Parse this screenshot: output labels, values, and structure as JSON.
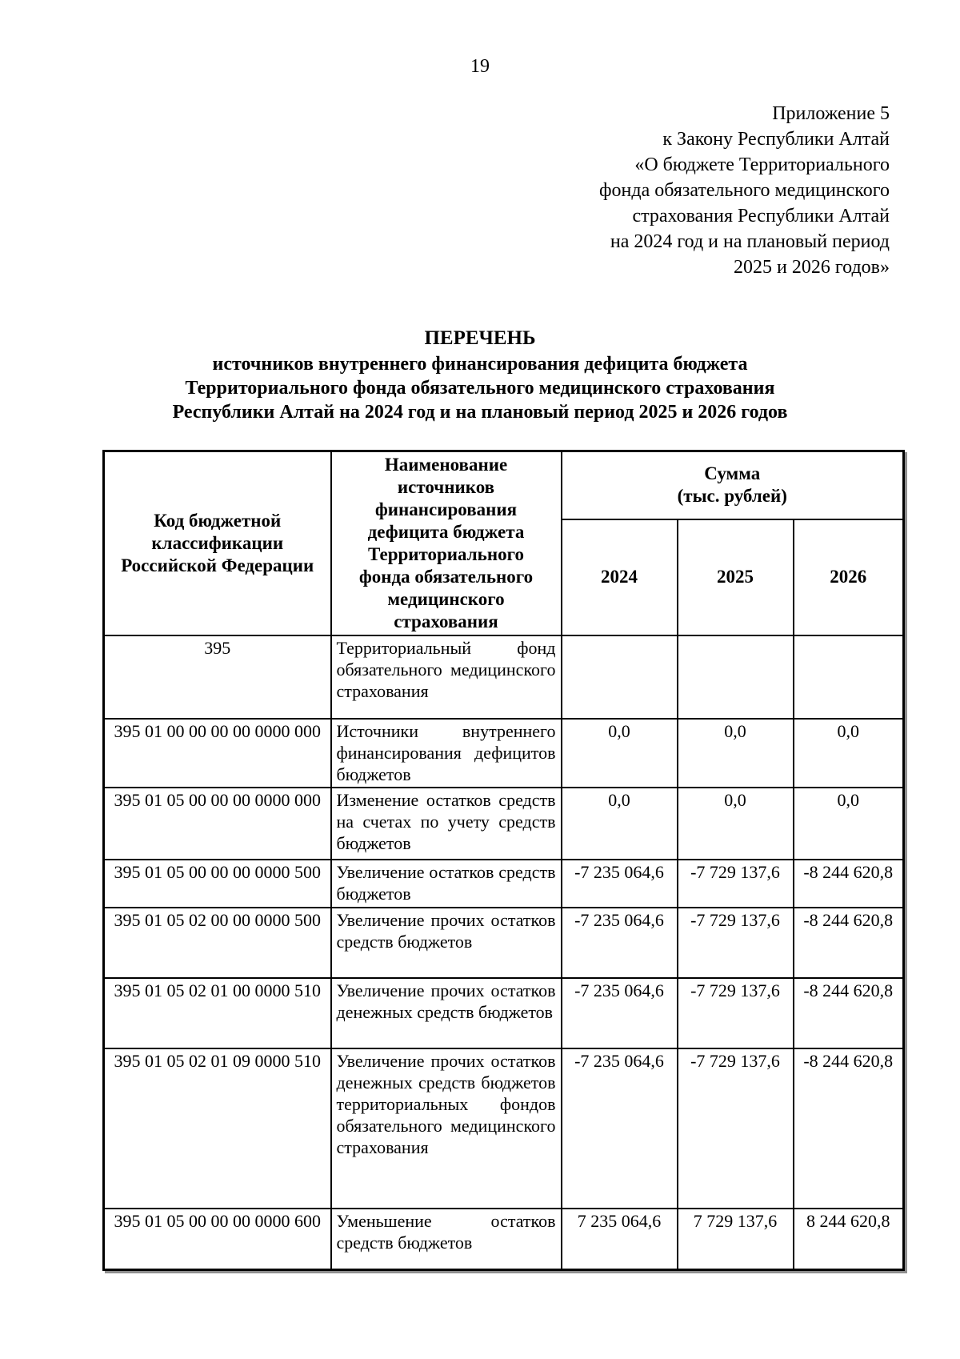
{
  "page": {
    "number": "19"
  },
  "appendix": {
    "lines": [
      "Приложение 5",
      "к Закону Республики Алтай",
      "«О бюджете Территориального",
      "фонда обязательного медицинского",
      "страхования Республики Алтай",
      "на 2024 год и на плановый период",
      "2025 и 2026 годов»"
    ]
  },
  "title": {
    "heading": "ПЕРЕЧЕНЬ",
    "lines": [
      "источников внутреннего финансирования дефицита бюджета",
      "Территориального фонда обязательного медицинского страхования",
      "Республики Алтай на 2024 год и на плановый период 2025 и 2026 годов"
    ]
  },
  "table": {
    "header": {
      "code_lines": [
        "Код бюджетной",
        "классификации",
        "Российской Федерации"
      ],
      "name_lines": [
        "Наименование",
        "источников",
        "финансирования",
        "дефицита бюджета",
        "Территориального",
        "фонда обязательного",
        "медицинского",
        "страхования"
      ],
      "sum_lines": [
        "Сумма",
        "(тыс. рублей)"
      ],
      "years": [
        "2024",
        "2025",
        "2026"
      ]
    },
    "rows": [
      {
        "code": "395",
        "name": "Территориальный фонд обязательного медицинского страхования",
        "y2024": "",
        "y2025": "",
        "y2026": ""
      },
      {
        "code": "395 01 00 00 00 00 0000 000",
        "name": "Источники внутреннего финансирования дефицитов бюджетов",
        "y2024": "0,0",
        "y2025": "0,0",
        "y2026": "0,0"
      },
      {
        "code": "395 01 05 00 00 00 0000 000",
        "name": "Изменение остатков средств на счетах по учету средств бюджетов",
        "y2024": "0,0",
        "y2025": "0,0",
        "y2026": "0,0"
      },
      {
        "code": "395 01 05 00 00 00 0000 500",
        "name": "Увеличение остатков средств бюджетов",
        "y2024": "-7 235 064,6",
        "y2025": "-7 729 137,6",
        "y2026": "-8 244 620,8"
      },
      {
        "code": "395 01 05 02 00 00 0000 500",
        "name": "Увеличение прочих остатков средств бюджетов",
        "y2024": "-7 235 064,6",
        "y2025": "-7 729 137,6",
        "y2026": "-8 244 620,8"
      },
      {
        "code": "395 01 05 02 01 00 0000 510",
        "name": "Увеличение прочих остатков денежных средств бюджетов",
        "y2024": "-7 235 064,6",
        "y2025": "-7 729 137,6",
        "y2026": "-8 244 620,8"
      },
      {
        "code": "395 01 05 02 01 09 0000 510",
        "name": "Увеличение прочих остатков денежных средств бюджетов территориальных фондов обязательного медицинского страхования",
        "y2024": "-7 235 064,6",
        "y2025": "-7 729 137,6",
        "y2026": "-8 244 620,8"
      },
      {
        "code": "395 01 05 00 00 00 0000 600",
        "name": "Уменьшение остатков средств бюджетов",
        "y2024": "7 235 064,6",
        "y2025": "7 729 137,6",
        "y2026": "8 244 620,8"
      }
    ]
  }
}
